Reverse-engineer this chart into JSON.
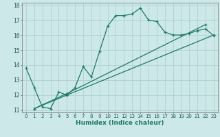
{
  "xlabel": "Humidex (Indice chaleur)",
  "bg_color": "#cce8e8",
  "line_color": "#1a7a6a",
  "grid_color": "#b0d0d0",
  "ylim": [
    11,
    18
  ],
  "xlim": [
    -0.5,
    23.5
  ],
  "yticks": [
    11,
    12,
    13,
    14,
    15,
    16,
    17,
    18
  ],
  "xticks": [
    0,
    1,
    2,
    3,
    4,
    5,
    6,
    7,
    8,
    9,
    10,
    11,
    12,
    13,
    14,
    15,
    16,
    17,
    18,
    19,
    20,
    21,
    22,
    23
  ],
  "series1_x": [
    0,
    1,
    2,
    3,
    4,
    5,
    6,
    7,
    8,
    9,
    10,
    11,
    12,
    13,
    14,
    15,
    16,
    17,
    18,
    19,
    20,
    21,
    22,
    23
  ],
  "series1_y": [
    13.8,
    12.5,
    11.2,
    11.1,
    12.2,
    12.0,
    12.5,
    13.9,
    13.2,
    14.9,
    16.6,
    17.3,
    17.3,
    17.4,
    17.8,
    17.0,
    16.9,
    16.2,
    16.0,
    16.0,
    16.1,
    16.3,
    16.4,
    15.95
  ],
  "series2_x": [
    1,
    5,
    23
  ],
  "series2_y": [
    11.1,
    12.0,
    16.0
  ],
  "series3_x": [
    1,
    5,
    22
  ],
  "series3_y": [
    11.1,
    12.1,
    16.7
  ]
}
